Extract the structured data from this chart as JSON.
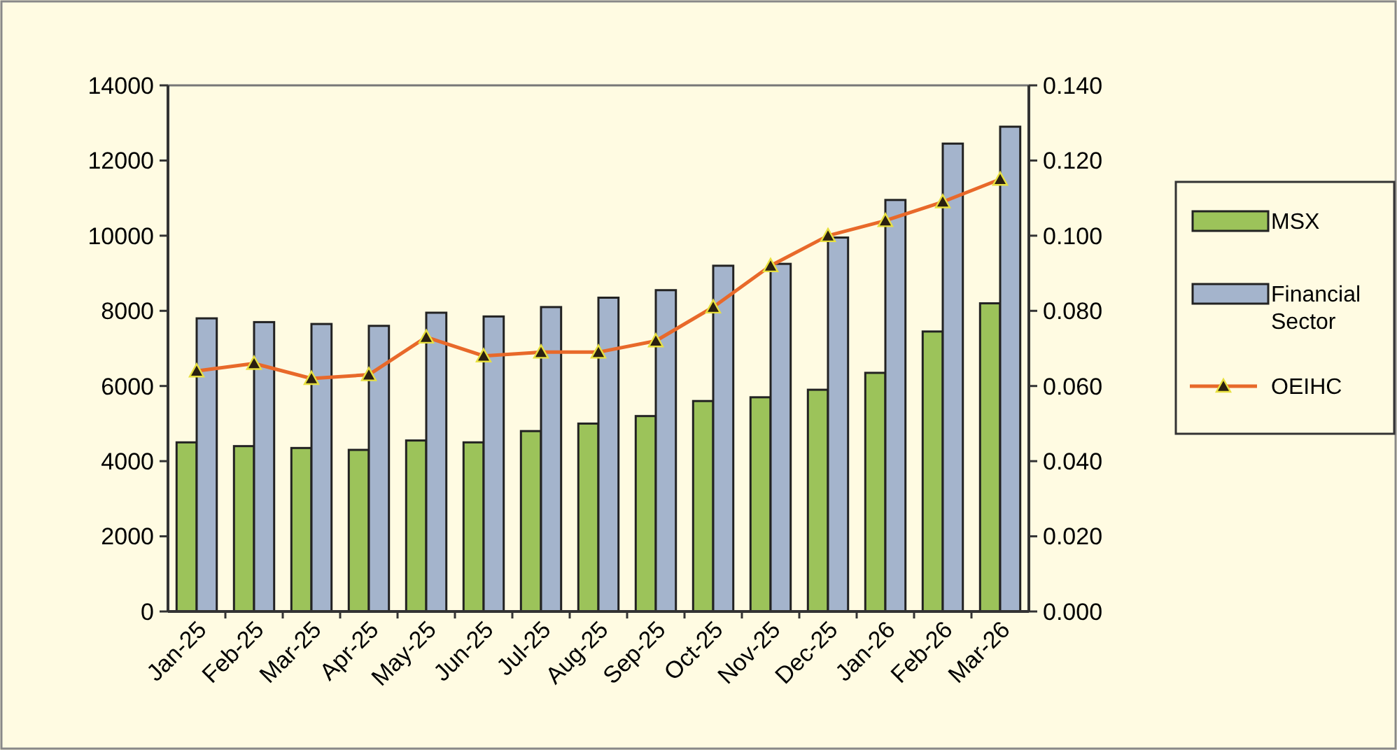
{
  "chart_data": {
    "type": "bar",
    "categories": [
      "Jan-25",
      "Feb-25",
      "Mar-25",
      "Apr-25",
      "May-25",
      "Jun-25",
      "Jul-25",
      "Aug-25",
      "Sep-25",
      "Oct-25",
      "Nov-25",
      "Dec-25",
      "Jan-26",
      "Feb-26",
      "Mar-26"
    ],
    "series": [
      {
        "name": "MSX",
        "color": "#9cc35a",
        "values": [
          4500,
          4400,
          4350,
          4300,
          4550,
          4500,
          4800,
          5000,
          5200,
          5600,
          5700,
          5900,
          6350,
          7450,
          8200
        ]
      },
      {
        "name": "Financial Sector",
        "color": "#a4b4cc",
        "values": [
          7800,
          7700,
          7650,
          7600,
          7950,
          7850,
          8100,
          8350,
          8550,
          9200,
          9250,
          9950,
          10950,
          12450,
          12900
        ]
      },
      {
        "name": "OEIHC",
        "type": "line",
        "axis": "y2",
        "color": "#e8692a",
        "marker": "triangle",
        "values": [
          0.064,
          0.066,
          0.062,
          0.063,
          0.073,
          0.068,
          0.069,
          0.069,
          0.072,
          0.081,
          0.092,
          0.1,
          0.104,
          0.109,
          0.115
        ]
      }
    ],
    "ylim": [
      0,
      14000
    ],
    "yticks": [
      0,
      2000,
      4000,
      6000,
      8000,
      10000,
      12000,
      14000
    ],
    "y2lim": [
      0,
      0.14
    ],
    "y2ticks": [
      {
        "value": 0,
        "label": "0.000"
      },
      {
        "value": 0.02,
        "label": "0.020"
      },
      {
        "value": 0.04,
        "label": "0.040"
      },
      {
        "value": 0.06,
        "label": "0.060"
      },
      {
        "value": 0.08,
        "label": "0.080"
      },
      {
        "value": 0.1,
        "label": "0.100"
      },
      {
        "value": 0.12,
        "label": "0.120"
      },
      {
        "value": 0.14,
        "label": "0.140"
      }
    ],
    "grid": false,
    "legend": "right"
  }
}
